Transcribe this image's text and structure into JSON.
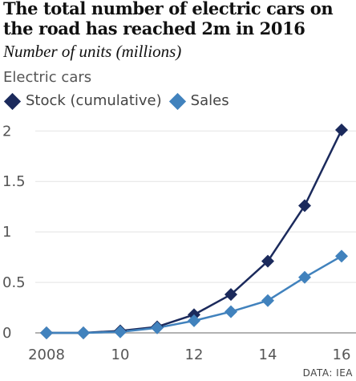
{
  "chart_data": {
    "type": "line",
    "title": "The total number of electric cars on the road has reached 2m in 2016",
    "subtitle": "Number of units (millions)",
    "panel_label": "Electric cars",
    "xlabel": "",
    "ylabel": "",
    "x": [
      2008,
      2009,
      2010,
      2011,
      2012,
      2013,
      2014,
      2015,
      2016
    ],
    "x_tick_labels": [
      "2008",
      "10",
      "12",
      "14",
      "16"
    ],
    "x_tick_values": [
      2008,
      2010,
      2012,
      2014,
      2016
    ],
    "y_tick_labels": [
      "0",
      "0.5",
      "1",
      "1.5",
      "2"
    ],
    "y_tick_values": [
      0,
      0.5,
      1,
      1.5,
      2
    ],
    "xlim": [
      2008,
      2016
    ],
    "ylim": [
      0,
      2.05
    ],
    "grid": "horizontal",
    "legend_position": "top-left",
    "series": [
      {
        "name": "Stock (cumulative)",
        "color": "#1b2a5c",
        "marker": "diamond",
        "values": [
          0.0,
          0.0,
          0.02,
          0.06,
          0.18,
          0.38,
          0.71,
          1.26,
          2.01
        ]
      },
      {
        "name": "Sales",
        "color": "#4182bd",
        "marker": "diamond",
        "values": [
          0.0,
          0.0,
          0.01,
          0.05,
          0.12,
          0.21,
          0.32,
          0.55,
          0.76
        ]
      }
    ],
    "source": "DATA: IEA"
  }
}
